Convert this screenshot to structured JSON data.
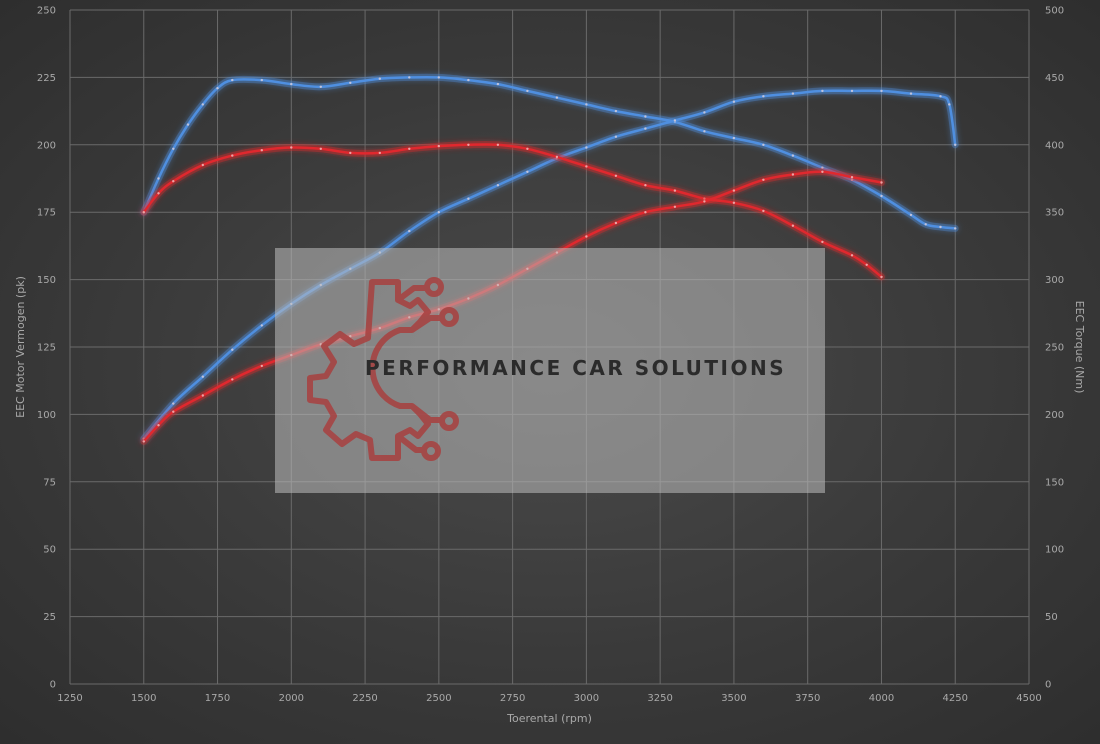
{
  "chart_data": {
    "type": "line",
    "xlabel": "Toerental (rpm)",
    "ylabel_left": "EEC Motor Vermogen (pk)",
    "ylabel_right": "EEC Torque (Nm)",
    "xlim": [
      1250,
      4500
    ],
    "ylim_left": [
      0,
      250
    ],
    "ylim_right": [
      0,
      500
    ],
    "xticks": [
      1250,
      1500,
      1750,
      2000,
      2250,
      2500,
      2750,
      3000,
      3250,
      3500,
      3750,
      4000,
      4250,
      4500
    ],
    "yticks_left": [
      0,
      25,
      50,
      75,
      100,
      125,
      150,
      175,
      200,
      225,
      250
    ],
    "yticks_right": [
      0,
      50,
      100,
      150,
      200,
      250,
      300,
      350,
      400,
      450,
      500
    ],
    "grid": true,
    "series": [
      {
        "color": "#4f8fe0",
        "axis": "right",
        "x": [
          1500,
          1550,
          1600,
          1650,
          1700,
          1750,
          1800,
          1900,
          2000,
          2100,
          2200,
          2300,
          2400,
          2500,
          2600,
          2700,
          2800,
          2900,
          3000,
          3100,
          3200,
          3300,
          3400,
          3500,
          3600,
          3700,
          3800,
          3900,
          4000,
          4100,
          4150,
          4200,
          4250
        ],
        "values": [
          350,
          375,
          397,
          415,
          430,
          442,
          448,
          448,
          445,
          443,
          446,
          449,
          450,
          450,
          448,
          445,
          440,
          435,
          430,
          425,
          421,
          417,
          410,
          405,
          400,
          392,
          383,
          374,
          362,
          348,
          341,
          339,
          338
        ]
      },
      {
        "color": "#4f8fe0",
        "axis": "left",
        "x": [
          1500,
          1600,
          1700,
          1800,
          1900,
          2000,
          2100,
          2200,
          2300,
          2400,
          2500,
          2600,
          2700,
          2800,
          2900,
          3000,
          3100,
          3200,
          3300,
          3400,
          3500,
          3600,
          3700,
          3800,
          3900,
          4000,
          4100,
          4200,
          4230,
          4250
        ],
        "values": [
          91,
          104,
          114,
          124,
          133,
          141,
          148,
          154,
          160,
          168,
          175,
          180,
          185,
          190,
          195,
          199,
          203,
          206,
          209,
          212,
          216,
          218,
          219,
          220,
          220,
          220,
          219,
          218,
          215,
          200
        ]
      },
      {
        "color": "#e0282e",
        "axis": "right",
        "x": [
          1500,
          1550,
          1600,
          1700,
          1800,
          1900,
          2000,
          2100,
          2200,
          2300,
          2400,
          2500,
          2600,
          2700,
          2800,
          2900,
          3000,
          3100,
          3200,
          3300,
          3400,
          3500,
          3600,
          3700,
          3800,
          3900,
          3950,
          4000
        ],
        "values": [
          350,
          364,
          373,
          385,
          392,
          396,
          398,
          397,
          394,
          394,
          397,
          399,
          400,
          400,
          397,
          391,
          384,
          377,
          370,
          366,
          360,
          357,
          351,
          340,
          328,
          318,
          311,
          302
        ]
      },
      {
        "color": "#e0282e",
        "axis": "left",
        "x": [
          1500,
          1550,
          1600,
          1700,
          1800,
          1900,
          2000,
          2100,
          2200,
          2300,
          2400,
          2500,
          2600,
          2700,
          2800,
          2900,
          3000,
          3100,
          3200,
          3300,
          3400,
          3500,
          3600,
          3700,
          3800,
          3900,
          4000
        ],
        "values": [
          90,
          96,
          101,
          107,
          113,
          118,
          122,
          126,
          129,
          132,
          136,
          139,
          143,
          148,
          154,
          160,
          166,
          171,
          175,
          177,
          179,
          183,
          187,
          189,
          190,
          188,
          186
        ]
      }
    ],
    "watermark": {
      "text": "PERFORMANCE CAR SOLUTIONS"
    }
  }
}
